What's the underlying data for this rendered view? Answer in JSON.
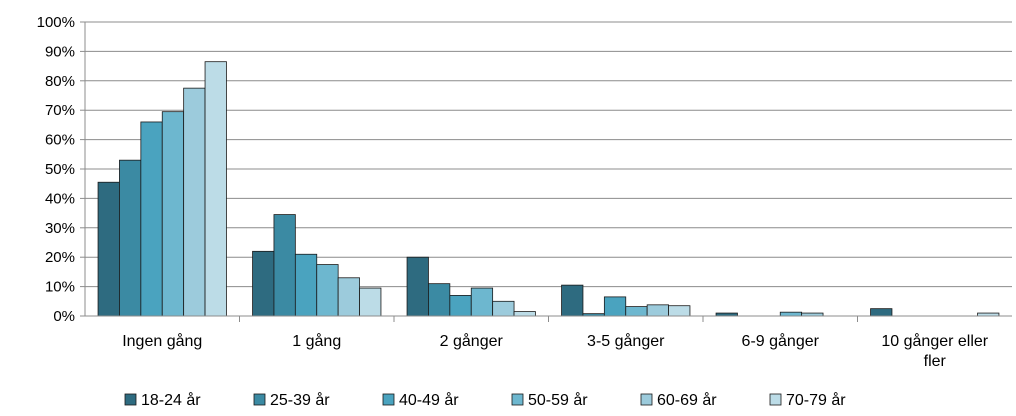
{
  "chart_data": {
    "type": "bar",
    "categories": [
      "Ingen gång",
      "1 gång",
      "2 gånger",
      "3-5 gånger",
      "6-9 gånger",
      "10 gånger eller fler"
    ],
    "category_label_lines": [
      [
        "Ingen gång"
      ],
      [
        "1 gång"
      ],
      [
        "2 gånger"
      ],
      [
        "3-5 gånger"
      ],
      [
        "6-9 gånger"
      ],
      [
        "10 gånger eller",
        "fler"
      ]
    ],
    "series": [
      {
        "name": "18-24 år",
        "color": "#2e6b80",
        "values": [
          45.5,
          22,
          20,
          10.5,
          1,
          2.5
        ]
      },
      {
        "name": "25-39 år",
        "color": "#3b8aa3",
        "values": [
          53,
          34.5,
          11,
          0.8,
          0,
          0
        ]
      },
      {
        "name": "40-49 år",
        "color": "#4aa3bf",
        "values": [
          66,
          21,
          7,
          6.5,
          0,
          0
        ]
      },
      {
        "name": "50-59 år",
        "color": "#6db7cf",
        "values": [
          69.5,
          17.5,
          9.5,
          3.2,
          1.3,
          0
        ]
      },
      {
        "name": "60-69 år",
        "color": "#9ccbdc",
        "values": [
          77.5,
          13,
          5,
          3.8,
          1,
          0
        ]
      },
      {
        "name": "70-79 år",
        "color": "#bcdce7",
        "values": [
          86.5,
          9.5,
          1.5,
          3.5,
          0,
          1
        ]
      }
    ],
    "ylim": [
      0,
      100
    ],
    "yticks": [
      "0%",
      "10%",
      "20%",
      "30%",
      "40%",
      "50%",
      "60%",
      "70%",
      "80%",
      "90%",
      "100%"
    ],
    "grid": true,
    "legend_position": "bottom"
  }
}
